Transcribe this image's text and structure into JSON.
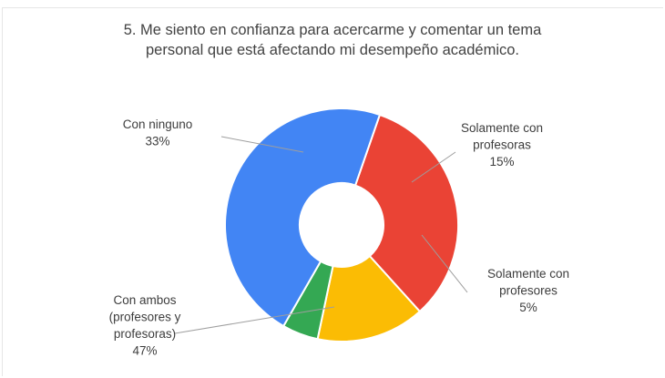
{
  "chart_data": {
    "type": "pie",
    "donut": true,
    "title_lines": [
      "5. Me siento en confianza para acercarme y comentar un tema",
      "personal que está afectando mi desempeño académico."
    ],
    "slices": [
      {
        "label_lines": [
          "Con ninguno"
        ],
        "percent_label": "33%",
        "value": 33,
        "color": "#ea4335"
      },
      {
        "label_lines": [
          "Solamente con",
          "profesoras"
        ],
        "percent_label": "15%",
        "value": 15,
        "color": "#fbbc04"
      },
      {
        "label_lines": [
          "Solamente con",
          "profesores"
        ],
        "percent_label": "5%",
        "value": 5,
        "color": "#34a853"
      },
      {
        "label_lines": [
          "Con ambos",
          "(profesores y",
          "profesoras)"
        ],
        "percent_label": "47%",
        "value": 47,
        "color": "#4285f4"
      }
    ],
    "legend": "none"
  }
}
